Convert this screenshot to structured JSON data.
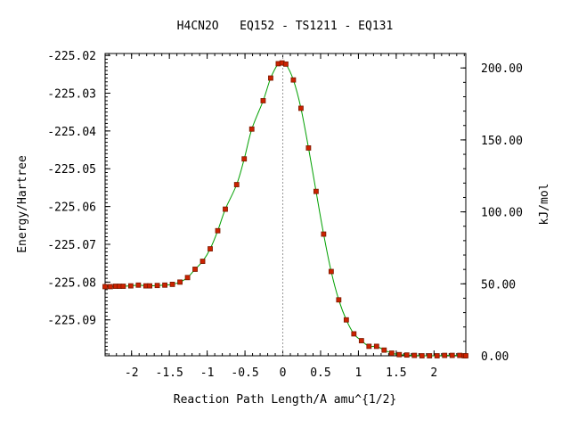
{
  "chart_data": {
    "type": "scatter",
    "title": "H4CN2O   EQ152 - TS1211 - EQ131",
    "xlabel": "Reaction Path Length/A amu^{1/2}",
    "ylabel": "Energy/Hartree",
    "y2label": "kJ/mol",
    "xlim": [
      -2.35,
      2.42
    ],
    "ylim": [
      -225.0995,
      -225.0195
    ],
    "xticks": [
      -2,
      -1.5,
      -1,
      -0.5,
      0,
      0.5,
      1,
      1.5,
      2
    ],
    "xtick_labels": [
      "-2",
      "-1.5",
      "-1",
      "-0.5",
      "0",
      "0.5",
      "1",
      "1.5",
      "2"
    ],
    "yticks": [
      -225.02,
      -225.03,
      -225.04,
      -225.05,
      -225.06,
      -225.07,
      -225.08,
      -225.09
    ],
    "ytick_labels": [
      "-225.02",
      "-225.03",
      "-225.04",
      "-225.05",
      "-225.06",
      "-225.07",
      "-225.08",
      "-225.09"
    ],
    "y2_zero_hartree": -225.0995,
    "y2_hartree_per_unit": 0.000380879,
    "y2ticks": [
      0,
      50,
      100,
      150,
      200
    ],
    "y2tick_labels": [
      "0.00",
      "50.00",
      "100.00",
      "150.00",
      "200.00"
    ],
    "ts_x": 0,
    "colors": {
      "curve": "#00a000",
      "points": "#cc2200",
      "point_border": "#7a1a00",
      "ts_line": "#999999",
      "axes": "#000000"
    },
    "series": [
      {
        "x": [
          -2.35,
          -2.28,
          -2.21,
          -2.16,
          -2.11,
          -2.01,
          -1.91,
          -1.81,
          -1.76,
          -1.66,
          -1.56,
          -1.46,
          -1.36,
          -1.26,
          -1.16,
          -1.06,
          -0.96,
          -0.86,
          -0.76,
          -0.61,
          -0.51,
          -0.41,
          -0.26,
          -0.16,
          -0.06,
          -0.01,
          0.04,
          0.14,
          0.24,
          0.34,
          0.44,
          0.54,
          0.64,
          0.74,
          0.84,
          0.94,
          1.04,
          1.14,
          1.24,
          1.34,
          1.44,
          1.54,
          1.64,
          1.74,
          1.84,
          1.94,
          2.04,
          2.14,
          2.24,
          2.34,
          2.4,
          2.42
        ],
        "y": [
          -225.0812,
          -225.0812,
          -225.0811,
          -225.0811,
          -225.0811,
          -225.081,
          -225.0808,
          -225.081,
          -225.081,
          -225.0809,
          -225.0808,
          -225.0806,
          -225.08,
          -225.0788,
          -225.0766,
          -225.0745,
          -225.0712,
          -225.0664,
          -225.0607,
          -225.0542,
          -225.0474,
          -225.0395,
          -225.032,
          -225.026,
          -225.0222,
          -225.022,
          -225.0223,
          -225.0265,
          -225.034,
          -225.0445,
          -225.056,
          -225.0673,
          -225.0772,
          -225.0847,
          -225.09,
          -225.0937,
          -225.0955,
          -225.097,
          -225.097,
          -225.098,
          -225.0988,
          -225.0992,
          -225.0993,
          -225.0994,
          -225.0995,
          -225.0995,
          -225.0995,
          -225.0994,
          -225.0994,
          -225.0994,
          -225.0995,
          -225.0995
        ]
      }
    ]
  }
}
